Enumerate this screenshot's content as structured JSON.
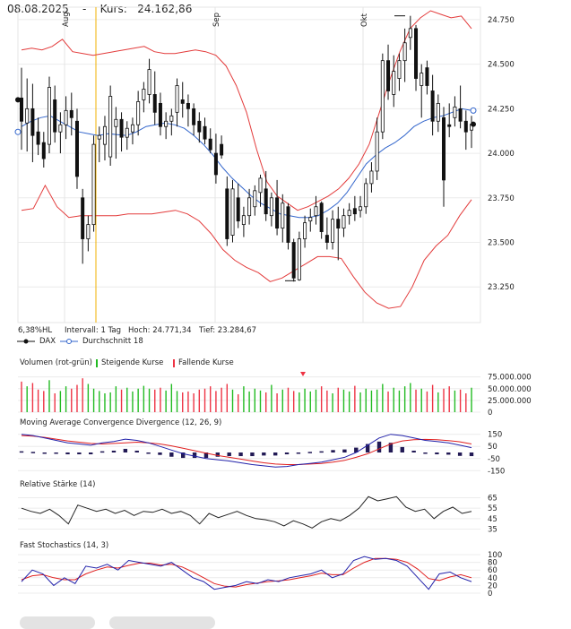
{
  "header": {
    "date": "08.08.2025",
    "separator": "-",
    "price_label": "Kurs:",
    "price": "24.162,86"
  },
  "info": {
    "hl": "6,38%HL",
    "interval": "Intervall: 1 Tag",
    "high": "Hoch:  24.771,34",
    "low": "Tief:  23.284,67"
  },
  "legend_main": {
    "dax": "DAX",
    "ma": "Durchschnitt 18"
  },
  "volume_panel": {
    "title": "Volumen (rot-grün)",
    "up_label": "Steigende Kurse",
    "down_label": "Fallende Kurse"
  },
  "macd_panel": {
    "title": "Moving Average Convergence Divergence (12, 26, 9)"
  },
  "rsi_panel": {
    "title": "Relative Stärke (14)"
  },
  "stoch_panel": {
    "title": "Fast Stochastics (14, 3)"
  },
  "colors": {
    "up": "#22bb22",
    "down": "#ee3344",
    "band": "#e33b3b",
    "ma": "#3366cc",
    "signal": "#e02020",
    "macd": "#2222aa",
    "hist": "#221a55",
    "cursor": "#f0b000"
  },
  "chart_data": [
    {
      "type": "candlestick",
      "x_months": [
        "Aug",
        "Sep",
        "Okt"
      ],
      "ylim": [
        23050,
        24820
      ],
      "yticks": [
        "24.750",
        "24.500",
        "24.250",
        "24.000",
        "23.750",
        "23.500",
        "23.250"
      ],
      "ytick_values": [
        24750,
        24500,
        24250,
        24000,
        23750,
        23500,
        23250
      ],
      "ohlc": [
        [
          24310,
          24480,
          24020,
          24180
        ],
        [
          24170,
          24420,
          24010,
          24250
        ],
        [
          24250,
          24390,
          23950,
          24100
        ],
        [
          24120,
          24200,
          23990,
          24050
        ],
        [
          24060,
          24120,
          23920,
          23970
        ],
        [
          24050,
          24430,
          24000,
          24370
        ],
        [
          24300,
          24380,
          24060,
          24120
        ],
        [
          24120,
          24230,
          24000,
          24160
        ],
        [
          24160,
          24320,
          24080,
          24240
        ],
        [
          24240,
          24340,
          24100,
          24200
        ],
        [
          24180,
          24250,
          23800,
          23870
        ],
        [
          23750,
          23800,
          23380,
          23520
        ],
        [
          23520,
          23650,
          23450,
          23600
        ],
        [
          23600,
          24100,
          23560,
          24050
        ],
        [
          24080,
          24150,
          23950,
          24100
        ],
        [
          24050,
          24210,
          23960,
          24150
        ],
        [
          23980,
          24380,
          23930,
          24320
        ],
        [
          24150,
          24260,
          23970,
          24190
        ],
        [
          24190,
          24230,
          24010,
          24090
        ],
        [
          24090,
          24180,
          24020,
          24140
        ],
        [
          24120,
          24200,
          24050,
          24160
        ],
        [
          24160,
          24350,
          24100,
          24290
        ],
        [
          24300,
          24400,
          24230,
          24360
        ],
        [
          24330,
          24530,
          24280,
          24470
        ],
        [
          24330,
          24460,
          24160,
          24230
        ],
        [
          24280,
          24340,
          24100,
          24150
        ],
        [
          24150,
          24230,
          24080,
          24180
        ],
        [
          24180,
          24250,
          24100,
          24210
        ],
        [
          24230,
          24420,
          24150,
          24380
        ],
        [
          24300,
          24400,
          24200,
          24280
        ],
        [
          24280,
          24330,
          24150,
          24250
        ],
        [
          24250,
          24280,
          24100,
          24160
        ],
        [
          24180,
          24230,
          24060,
          24120
        ],
        [
          24150,
          24200,
          24050,
          24080
        ],
        [
          24080,
          24140,
          24000,
          24020
        ],
        [
          24000,
          24110,
          23830,
          23880
        ],
        [
          24050,
          24100,
          23970,
          23990
        ],
        [
          23800,
          23870,
          23480,
          23520
        ],
        [
          23540,
          23850,
          23500,
          23800
        ],
        [
          23750,
          23830,
          23580,
          23620
        ],
        [
          23600,
          23700,
          23530,
          23650
        ],
        [
          23650,
          23800,
          23600,
          23750
        ],
        [
          23700,
          23820,
          23650,
          23790
        ],
        [
          23780,
          23880,
          23700,
          23860
        ],
        [
          23800,
          23900,
          23620,
          23660
        ],
        [
          23650,
          23780,
          23590,
          23750
        ],
        [
          23750,
          23850,
          23540,
          23580
        ],
        [
          23580,
          23770,
          23500,
          23720
        ],
        [
          23700,
          23720,
          23460,
          23500
        ],
        [
          23500,
          23520,
          23280,
          23300
        ],
        [
          23290,
          23560,
          23284.67,
          23520
        ],
        [
          23520,
          23650,
          23470,
          23610
        ],
        [
          23620,
          23690,
          23560,
          23640
        ],
        [
          23650,
          23760,
          23600,
          23700
        ],
        [
          23720,
          23730,
          23520,
          23560
        ],
        [
          23540,
          23640,
          23460,
          23500
        ],
        [
          23500,
          23680,
          23460,
          23630
        ],
        [
          23630,
          23700,
          23400,
          23580
        ],
        [
          23580,
          23690,
          23530,
          23650
        ],
        [
          23650,
          23720,
          23600,
          23680
        ],
        [
          23690,
          23760,
          23620,
          23660
        ],
        [
          23680,
          23760,
          23640,
          23700
        ],
        [
          23700,
          23860,
          23660,
          23830
        ],
        [
          23830,
          23950,
          23780,
          23900
        ],
        [
          23900,
          24200,
          23850,
          24120
        ],
        [
          24120,
          24560,
          24080,
          24520
        ],
        [
          24520,
          24610,
          24300,
          24350
        ],
        [
          24330,
          24550,
          24260,
          24460
        ],
        [
          24420,
          24560,
          24350,
          24520
        ],
        [
          24520,
          24700,
          24400,
          24620
        ],
        [
          24650,
          24771.34,
          24580,
          24700
        ],
        [
          24700,
          24720,
          24350,
          24420
        ],
        [
          24380,
          24500,
          24200,
          24450
        ],
        [
          24480,
          24520,
          24330,
          24380
        ],
        [
          24350,
          24440,
          24100,
          24180
        ],
        [
          24180,
          24330,
          24120,
          24280
        ],
        [
          24200,
          24260,
          23700,
          23850
        ],
        [
          24160,
          24280,
          24090,
          24150
        ],
        [
          24200,
          24320,
          24150,
          24260
        ],
        [
          24250,
          24380,
          24140,
          24180
        ],
        [
          24180,
          24240,
          24020,
          24120
        ],
        [
          24130,
          24210,
          24030,
          24162.86
        ]
      ],
      "ma18": [
        24150,
        24180,
        24200,
        24210,
        24180,
        24150,
        24120,
        24110,
        24100,
        24110,
        24105,
        24100,
        24120,
        24150,
        24160,
        24170,
        24160,
        24140,
        24100,
        24050,
        23990,
        23920,
        23860,
        23810,
        23760,
        23720,
        23690,
        23660,
        23650,
        23640,
        23640,
        23650,
        23680,
        23720,
        23780,
        23860,
        23940,
        23990,
        24030,
        24060,
        24100,
        24150,
        24180,
        24200,
        24210,
        24230,
        24250,
        24240
      ],
      "bb_upper": [
        24580,
        24590,
        24580,
        24600,
        24640,
        24570,
        24560,
        24550,
        24560,
        24570,
        24580,
        24590,
        24600,
        24570,
        24560,
        24560,
        24570,
        24580,
        24570,
        24550,
        24490,
        24380,
        24230,
        24020,
        23840,
        23760,
        23720,
        23680,
        23700,
        23730,
        23760,
        23800,
        23860,
        23940,
        24050,
        24230,
        24410,
        24570,
        24700,
        24760,
        24800,
        24780,
        24760,
        24770,
        24700
      ],
      "bb_lower": [
        23680,
        23690,
        23820,
        23700,
        23640,
        23650,
        23650,
        23650,
        23650,
        23660,
        23660,
        23660,
        23670,
        23680,
        23660,
        23620,
        23550,
        23460,
        23400,
        23360,
        23330,
        23280,
        23300,
        23340,
        23380,
        23420,
        23420,
        23410,
        23310,
        23220,
        23160,
        23130,
        23140,
        23250,
        23400,
        23480,
        23540,
        23650,
        23740
      ]
    },
    {
      "type": "bar",
      "name": "Volumen",
      "yticks": [
        "75.000.000",
        "50.000.000",
        "25.000.000",
        "0"
      ],
      "ytick_values": [
        75000000,
        50000000,
        25000000,
        0
      ],
      "values": [
        65,
        55,
        62,
        48,
        45,
        68,
        40,
        45,
        55,
        50,
        58,
        72,
        60,
        50,
        45,
        40,
        42,
        55,
        48,
        52,
        44,
        50,
        56,
        50,
        48,
        52,
        46,
        60,
        45,
        42,
        44,
        40,
        48,
        50,
        55,
        45,
        52,
        60,
        48,
        38,
        55,
        44,
        50,
        46,
        42,
        58,
        40,
        48,
        52,
        45,
        42,
        50,
        44,
        48,
        55,
        46,
        40,
        52,
        48,
        44,
        56,
        42,
        50,
        46,
        48,
        60,
        44,
        52,
        46,
        55,
        62,
        48,
        50,
        44,
        58,
        42,
        50,
        55,
        46,
        48,
        40,
        52
      ],
      "value_scale": "millions"
    },
    {
      "type": "line",
      "name": "MACD",
      "yticks": [
        "150",
        "50",
        "-50",
        "-150"
      ],
      "ytick_values": [
        150,
        50,
        -50,
        -150
      ],
      "macd": [
        150,
        140,
        120,
        100,
        80,
        70,
        60,
        80,
        90,
        110,
        100,
        80,
        50,
        20,
        -10,
        -30,
        -50,
        -60,
        -70,
        -85,
        -100,
        -110,
        -120,
        -115,
        -100,
        -90,
        -80,
        -60,
        -40,
        0,
        60,
        120,
        150,
        140,
        120,
        100,
        90,
        80,
        60,
        40
      ],
      "signal": [
        140,
        135,
        125,
        110,
        95,
        85,
        75,
        70,
        75,
        80,
        85,
        80,
        70,
        55,
        35,
        15,
        -5,
        -25,
        -40,
        -55,
        -70,
        -85,
        -95,
        -100,
        -100,
        -95,
        -90,
        -80,
        -65,
        -40,
        -10,
        30,
        70,
        95,
        105,
        108,
        105,
        98,
        88,
        70
      ],
      "histogram": [
        10,
        5,
        -5,
        -10,
        -15,
        -15,
        -15,
        10,
        15,
        30,
        15,
        0,
        -20,
        -35,
        -45,
        -45,
        -45,
        -35,
        -30,
        -30,
        -30,
        -25,
        -25,
        -15,
        0,
        5,
        10,
        20,
        25,
        40,
        70,
        90,
        80,
        45,
        15,
        -8,
        -15,
        -18,
        -28,
        -30
      ]
    },
    {
      "type": "line",
      "name": "RSI",
      "yticks": [
        "65",
        "55",
        "45",
        "35"
      ],
      "ytick_values": [
        65,
        55,
        45,
        35
      ],
      "values": [
        55,
        52,
        50,
        54,
        48,
        40,
        58,
        55,
        52,
        54,
        50,
        53,
        48,
        52,
        51,
        54,
        50,
        52,
        48,
        40,
        50,
        46,
        49,
        52,
        48,
        45,
        44,
        42,
        38,
        43,
        40,
        36,
        42,
        45,
        43,
        48,
        55,
        66,
        62,
        64,
        66,
        56,
        52,
        54,
        45,
        52,
        56,
        50,
        52
      ]
    },
    {
      "type": "line",
      "name": "Fast Stochastics",
      "yticks": [
        "100",
        "80",
        "60",
        "40",
        "20",
        "0"
      ],
      "ytick_values": [
        100,
        80,
        60,
        40,
        20,
        0
      ],
      "k": [
        30,
        60,
        50,
        20,
        40,
        25,
        70,
        65,
        75,
        60,
        85,
        80,
        75,
        70,
        80,
        60,
        40,
        30,
        10,
        15,
        20,
        30,
        25,
        35,
        30,
        40,
        45,
        50,
        60,
        40,
        50,
        85,
        95,
        88,
        90,
        85,
        70,
        40,
        10,
        50,
        55,
        40,
        30
      ],
      "d": [
        35,
        45,
        48,
        40,
        35,
        35,
        50,
        60,
        68,
        65,
        72,
        78,
        78,
        73,
        75,
        68,
        55,
        40,
        25,
        18,
        16,
        22,
        26,
        30,
        32,
        35,
        40,
        45,
        52,
        48,
        48,
        65,
        80,
        90,
        90,
        88,
        80,
        62,
        38,
        33,
        42,
        48,
        40
      ]
    }
  ]
}
